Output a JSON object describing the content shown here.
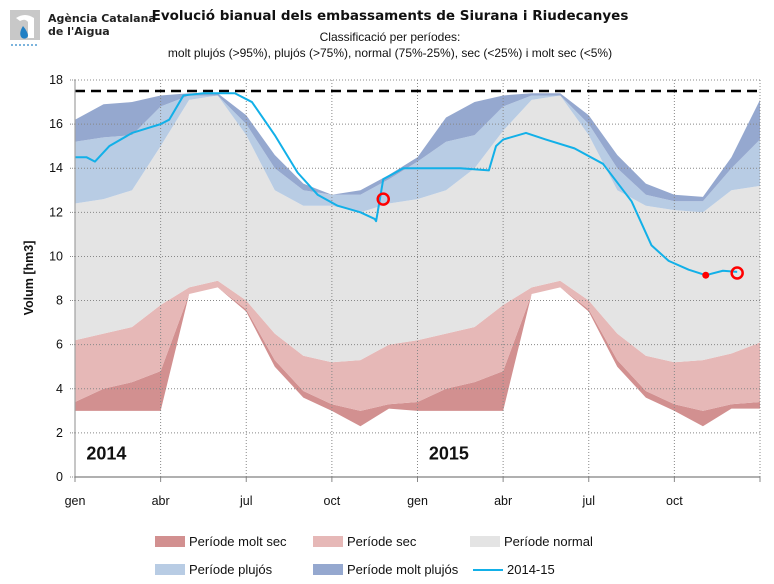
{
  "header": {
    "org_line1": "Agència Catalana",
    "org_line2": "de l'Aigua",
    "title": "Evolució bianual dels embassaments de Siurana i Riudecanyes",
    "subtitle_line1": "Classificació per períodes:",
    "subtitle_line2": "molt plujós (>95%), plujós (>75%), normal (75%-25%), sec (<25%) i molt sec (<5%)"
  },
  "chart_data": {
    "type": "area",
    "title": "Evolució bianual dels embassaments de Siurana i Riudecanyes",
    "xlabel": "",
    "ylabel": "Volum [hm3]",
    "ylim": [
      0,
      18
    ],
    "yticks": [
      0,
      2,
      4,
      6,
      8,
      10,
      12,
      14,
      16,
      18
    ],
    "x_unit": "month index (0 = start of gen 2014, 24 = end of des 2015)",
    "xticks": [
      {
        "x": 0,
        "label": "gen"
      },
      {
        "x": 3,
        "label": "abr"
      },
      {
        "x": 6,
        "label": "jul"
      },
      {
        "x": 9,
        "label": "oct"
      },
      {
        "x": 12,
        "label": "gen"
      },
      {
        "x": 15,
        "label": "abr"
      },
      {
        "x": 18,
        "label": "jul"
      },
      {
        "x": 21,
        "label": "oct"
      }
    ],
    "grid": true,
    "capacity_line": 17.5,
    "year_labels": [
      {
        "x": 1.1,
        "y": 0.8,
        "label": "2014"
      },
      {
        "x": 13.1,
        "y": 0.8,
        "label": "2015"
      }
    ],
    "x": [
      0,
      1,
      2,
      3,
      4,
      5,
      6,
      7,
      8,
      9,
      10,
      11,
      12,
      13,
      14,
      15,
      16,
      17,
      18,
      19,
      20,
      21,
      22,
      23,
      24
    ],
    "bands": [
      {
        "name": "Període molt sec",
        "color": "#d29090",
        "lower": [
          3.0,
          3.0,
          3.0,
          3.0,
          8.3,
          8.6,
          7.5,
          5.0,
          3.6,
          3.0,
          2.3,
          3.1,
          3.0,
          3.0,
          3.0,
          3.0,
          8.3,
          8.6,
          7.5,
          5.0,
          3.6,
          3.0,
          2.3,
          3.1,
          3.1
        ],
        "upper": [
          3.4,
          4.0,
          4.3,
          4.8,
          8.3,
          8.6,
          7.6,
          5.3,
          3.9,
          3.3,
          3.0,
          3.3,
          3.4,
          4.0,
          4.3,
          4.8,
          8.3,
          8.6,
          7.6,
          5.3,
          3.9,
          3.3,
          3.0,
          3.3,
          3.4
        ]
      },
      {
        "name": "Període sec",
        "color": "#e6b8b7",
        "upper": [
          6.2,
          6.5,
          6.8,
          7.8,
          8.6,
          8.9,
          8.0,
          6.5,
          5.5,
          5.2,
          5.3,
          6.0,
          6.2,
          6.5,
          6.8,
          7.8,
          8.6,
          8.9,
          8.0,
          6.5,
          5.5,
          5.2,
          5.3,
          5.6,
          6.1
        ]
      },
      {
        "name": "Període normal",
        "color": "#e4e4e4",
        "upper": [
          12.4,
          12.6,
          13.0,
          15.0,
          17.1,
          17.3,
          15.5,
          13.0,
          12.3,
          12.3,
          12.0,
          12.4,
          12.6,
          13.0,
          14.0,
          15.7,
          17.1,
          17.3,
          15.5,
          13.0,
          12.3,
          12.1,
          12.0,
          13.0,
          13.2
        ]
      },
      {
        "name": "Període plujós",
        "color": "#b8cce4",
        "upper": [
          15.2,
          15.4,
          15.5,
          16.8,
          17.3,
          17.3,
          16.0,
          14.0,
          13.0,
          12.8,
          12.8,
          13.5,
          14.3,
          15.2,
          15.5,
          16.8,
          17.3,
          17.3,
          16.0,
          14.0,
          12.8,
          12.5,
          12.5,
          14.0,
          15.3
        ]
      },
      {
        "name": "Període molt plujós",
        "color": "#95a8cf",
        "upper": [
          16.2,
          16.9,
          17.0,
          17.3,
          17.4,
          17.4,
          16.4,
          14.6,
          13.3,
          12.8,
          13.0,
          13.7,
          14.5,
          16.3,
          17.0,
          17.3,
          17.4,
          17.4,
          16.4,
          14.6,
          13.3,
          12.8,
          12.7,
          14.5,
          17.1
        ]
      }
    ],
    "series": [
      {
        "name": "2014-15",
        "color": "#12b0e8",
        "x": [
          0,
          0.4,
          0.7,
          1.2,
          2.0,
          3.0,
          3.3,
          3.8,
          4.5,
          5.0,
          5.6,
          6.2,
          7.0,
          7.8,
          8.5,
          9.2,
          10.0,
          10.5,
          10.55,
          10.8,
          11.5,
          12.5,
          13.5,
          14.5,
          14.75,
          15.0,
          15.8,
          16.5,
          17.5,
          18.5,
          19.5,
          20.2,
          20.8,
          21.5,
          22.1,
          22.7,
          23.2
        ],
        "y": [
          14.5,
          14.5,
          14.3,
          15.0,
          15.6,
          16.0,
          16.2,
          17.3,
          17.4,
          17.4,
          17.4,
          17.0,
          15.5,
          13.8,
          12.8,
          12.3,
          12.0,
          11.7,
          11.6,
          13.5,
          14.0,
          14.0,
          14.0,
          13.9,
          15.0,
          15.3,
          15.6,
          15.3,
          14.9,
          14.2,
          12.5,
          10.5,
          9.8,
          9.4,
          9.15,
          9.35,
          9.3
        ]
      }
    ],
    "markers": [
      {
        "x": 10.8,
        "y": 12.6,
        "style": "open-circle",
        "color": "#ff0000"
      },
      {
        "x": 22.1,
        "y": 9.15,
        "style": "filled-dot",
        "color": "#ff0000"
      },
      {
        "x": 23.2,
        "y": 9.25,
        "style": "open-circle",
        "color": "#ff0000"
      }
    ],
    "legend": {
      "placement": "bottom",
      "items": [
        {
          "label": "Període molt  sec",
          "kind": "area",
          "color": "#d29090"
        },
        {
          "label": "Període sec",
          "kind": "area",
          "color": "#e6b8b7"
        },
        {
          "label": "Període normal",
          "kind": "area",
          "color": "#e4e4e4"
        },
        {
          "label": "Període plujós",
          "kind": "area",
          "color": "#b8cce4"
        },
        {
          "label": "Període molt  plujós",
          "kind": "area",
          "color": "#95a8cf"
        },
        {
          "label": "2014-15",
          "kind": "line",
          "color": "#12b0e8"
        }
      ]
    }
  }
}
